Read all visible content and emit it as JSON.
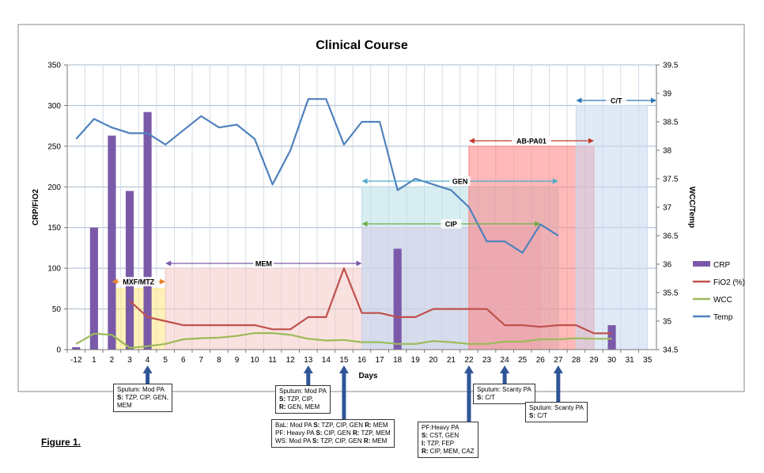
{
  "chart_data": {
    "type": "combo",
    "title": "Clinical Course",
    "xlabel": "Days",
    "ylabel_left": "CRP/FiO2",
    "ylabel_right": "WCC/Temp",
    "ylim_left": [
      0,
      350
    ],
    "yticks_left": [
      "0",
      "50",
      "100",
      "150",
      "200",
      "250",
      "300",
      "350"
    ],
    "ylim_right": [
      34.5,
      39.5
    ],
    "yticks_right": [
      "34.5",
      "35",
      "35.5",
      "36",
      "36.5",
      "37",
      "37.5",
      "38",
      "38.5",
      "39",
      "39.5"
    ],
    "categories": [
      "-12",
      "1",
      "2",
      "3",
      "4",
      "5",
      "6",
      "7",
      "8",
      "9",
      "10",
      "11",
      "12",
      "13",
      "14",
      "15",
      "16",
      "17",
      "18",
      "19",
      "20",
      "21",
      "22",
      "23",
      "24",
      "25",
      "26",
      "27",
      "28",
      "29",
      "30",
      "31",
      "35"
    ],
    "series": [
      {
        "name": "CRP",
        "type": "bar",
        "axis": "left",
        "color": "#7a5aa8",
        "values": [
          3,
          150,
          263,
          195,
          292,
          null,
          null,
          null,
          null,
          null,
          null,
          null,
          null,
          null,
          null,
          null,
          null,
          null,
          124,
          null,
          null,
          null,
          null,
          null,
          null,
          null,
          null,
          null,
          null,
          null,
          30,
          null,
          null
        ]
      },
      {
        "name": "FiO2 (%)",
        "type": "line",
        "axis": "left",
        "color": "#c0504d",
        "values": [
          null,
          null,
          null,
          60,
          40,
          35,
          30,
          30,
          30,
          30,
          30,
          25,
          25,
          40,
          40,
          100,
          45,
          45,
          40,
          40,
          50,
          50,
          50,
          50,
          30,
          30,
          28,
          30,
          30,
          20,
          20,
          null,
          null
        ]
      },
      {
        "name": "WCC",
        "type": "line",
        "axis": "right",
        "color": "#9bbb59",
        "values": [
          34.6,
          34.78,
          34.76,
          34.53,
          34.56,
          34.6,
          34.68,
          34.7,
          34.71,
          34.74,
          34.79,
          34.79,
          34.76,
          34.69,
          34.66,
          34.67,
          34.63,
          34.63,
          34.6,
          34.6,
          34.65,
          34.63,
          34.6,
          34.6,
          34.64,
          34.64,
          34.68,
          34.68,
          34.7,
          34.69,
          34.69,
          null,
          null
        ]
      },
      {
        "name": "Temp",
        "type": "line",
        "axis": "right",
        "color": "#4f81bd",
        "values": [
          38.2,
          38.55,
          38.4,
          38.3,
          38.3,
          38.1,
          38.35,
          38.6,
          38.4,
          38.45,
          38.2,
          37.4,
          38.0,
          38.9,
          38.9,
          38.1,
          38.5,
          38.5,
          37.3,
          37.5,
          37.4,
          37.3,
          37.0,
          36.4,
          36.4,
          36.2,
          36.7,
          36.5,
          null,
          null,
          null,
          null,
          null
        ]
      }
    ],
    "treatment_bands": [
      {
        "label": "MXF/MTZ",
        "start": 2.5,
        "end": 5.5,
        "top": 75,
        "fill": "#ffe680",
        "arrow": "#e8822a"
      },
      {
        "label": "MEM",
        "start": 5.5,
        "end": 16.5,
        "top": 100,
        "fill": "#f2c9c4",
        "arrow": "#7a5aa8"
      },
      {
        "label": "GEN",
        "start": 16.5,
        "end": 27.5,
        "top": 200,
        "fill": "#b8dfe6",
        "arrow": "#4bacc6"
      },
      {
        "label": "CIP",
        "start": 16.5,
        "end": 26.5,
        "top": 150,
        "fill": "#d6cde8",
        "arrow": "#70ad47"
      },
      {
        "label": "AB-PA01",
        "start": 22.5,
        "end": 29.5,
        "top": 250,
        "fill": "#ff8080",
        "arrow": "#c0392b"
      },
      {
        "label": "C/T",
        "start": 28.5,
        "end": 32.5,
        "top": 300,
        "fill": "#c6d9f1",
        "arrow": "#2e75b6"
      }
    ],
    "legend": [
      "CRP",
      "FiO2 (%)",
      "WCC",
      "Temp"
    ],
    "legend_position": "right",
    "grid": true
  },
  "annotations": [
    {
      "day_index": 4,
      "lines": [
        {
          "text": "Sputum: Mod PA"
        },
        {
          "b": "S:",
          "text": " TZP, CIP, GEN,"
        },
        {
          "text": "MEM"
        }
      ]
    },
    {
      "day_index": 13,
      "lines": [
        {
          "text": "Sputum: Mod PA"
        },
        {
          "b": "S:",
          "text": " TZP, CIP,"
        },
        {
          "b": "R:",
          "text": " GEN, MEM"
        }
      ]
    },
    {
      "day_index": 15,
      "lines": [
        {
          "text": "BaL: Mod  PA ",
          "b": "S:",
          "text2": " TZP, CIP, GEN ",
          "b2": "R:",
          "text3": " MEM"
        },
        {
          "text": "PF: Heavy PA ",
          "b": "S:",
          "text2": " CIP, GEN ",
          "b2": "R:",
          "text3": " TZP, MEM"
        },
        {
          "text": "WS: Mod PA ",
          "b": "S:",
          "text2": " TZP, CIP, GEN ",
          "b2": "R:",
          "text3": " MEM"
        }
      ]
    },
    {
      "day_index": 22,
      "lines": [
        {
          "text": "PF:Heavy PA"
        },
        {
          "b": "S:",
          "text": " CST, GEN"
        },
        {
          "b": "I:",
          "text": " TZP,  FEP"
        },
        {
          "b": "R:",
          "text": " CIP, MEM, CAZ"
        }
      ]
    },
    {
      "day_index": 24,
      "lines": [
        {
          "text": "Sputum: Scanty PA"
        },
        {
          "b": "S:",
          "text": " C/T"
        }
      ]
    },
    {
      "day_index": 27,
      "lines": [
        {
          "text": "Sputum: Scanty PA"
        },
        {
          "b": "S:",
          "text": " C/T"
        }
      ]
    }
  ],
  "figure_label": "Figure 1."
}
